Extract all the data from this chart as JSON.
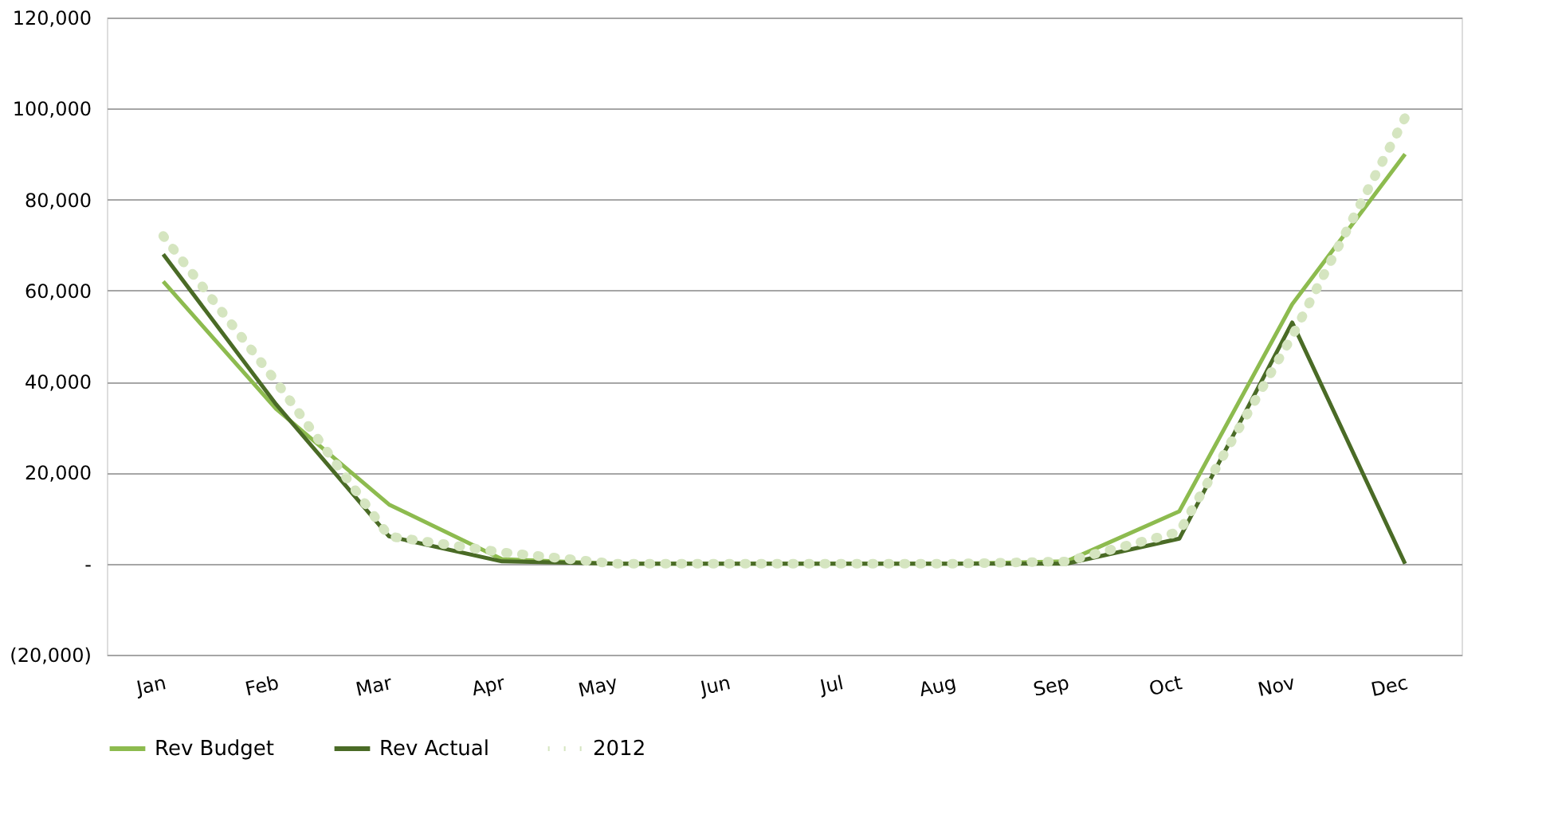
{
  "chart_data": {
    "type": "line",
    "categories": [
      "Jan",
      "Feb",
      "Mar",
      "Apr",
      "May",
      "Jun",
      "Jul",
      "Aug",
      "Sep",
      "Oct",
      "Nov",
      "Dec"
    ],
    "series": [
      {
        "name": "Rev Budget",
        "color": "#8dbb4f",
        "line_style": "solid",
        "values": [
          62000,
          34000,
          13000,
          1000,
          0,
          0,
          0,
          0,
          500,
          11500,
          57000,
          90000
        ]
      },
      {
        "name": "Rev Actual",
        "color": "#4a6b26",
        "line_style": "solid",
        "values": [
          68000,
          35000,
          6000,
          500,
          0,
          0,
          0,
          0,
          0,
          5500,
          53000,
          0
        ]
      },
      {
        "name": "2012",
        "color": "#d5e5c0",
        "line_style": "dotted",
        "values": [
          72000,
          40000,
          6000,
          2500,
          0,
          0,
          0,
          0,
          500,
          7000,
          50000,
          98000
        ]
      }
    ],
    "ylim": [
      -20000,
      120000
    ],
    "yticks": [
      {
        "value": -20000,
        "label": "(20,000)"
      },
      {
        "value": 0,
        "label": "-"
      },
      {
        "value": 20000,
        "label": "20,000"
      },
      {
        "value": 40000,
        "label": "40,000"
      },
      {
        "value": 60000,
        "label": "60,000"
      },
      {
        "value": 80000,
        "label": "80,000"
      },
      {
        "value": 100000,
        "label": "100,000"
      },
      {
        "value": 120000,
        "label": "120,000"
      }
    ],
    "grid": "y",
    "legend": "bottom",
    "marker": "none"
  }
}
